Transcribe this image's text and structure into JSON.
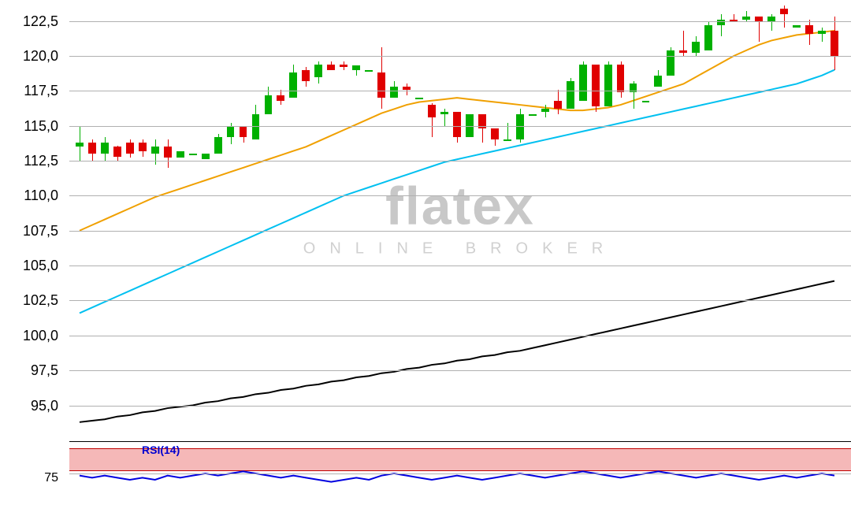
{
  "watermark": {
    "brand": "flatex",
    "sub": "ONLINE BROKER"
  },
  "price_chart": {
    "type": "candlestick",
    "ylim": [
      93.0,
      124.0
    ],
    "ytick_step": 2.5,
    "yticks": [
      "122,5",
      "120,0",
      "117,5",
      "115,0",
      "112,5",
      "110,0",
      "107,5",
      "105,0",
      "102,5",
      "100,0",
      "97,5",
      "95,0"
    ],
    "grid_color": "#b0b0b0",
    "background_color": "#ffffff",
    "label_fontsize": 18,
    "label_color": "#000000",
    "up_color": "#00b000",
    "down_color": "#e00000",
    "wick_width": 1,
    "candle_width": 8,
    "candle_gap": 4,
    "candles": [
      {
        "o": 113.5,
        "h": 115.0,
        "l": 112.5,
        "c": 113.8,
        "dir": "u"
      },
      {
        "o": 113.8,
        "h": 114.0,
        "l": 112.5,
        "c": 113.0,
        "dir": "d"
      },
      {
        "o": 113.0,
        "h": 114.2,
        "l": 112.5,
        "c": 113.8,
        "dir": "u"
      },
      {
        "o": 113.5,
        "h": 113.6,
        "l": 112.5,
        "c": 112.8,
        "dir": "d"
      },
      {
        "o": 113.8,
        "h": 114.0,
        "l": 112.7,
        "c": 113.0,
        "dir": "d"
      },
      {
        "o": 113.8,
        "h": 114.0,
        "l": 112.8,
        "c": 113.2,
        "dir": "d"
      },
      {
        "o": 113.0,
        "h": 114.0,
        "l": 112.2,
        "c": 113.5,
        "dir": "u"
      },
      {
        "o": 113.5,
        "h": 114.0,
        "l": 112.0,
        "c": 112.7,
        "dir": "d"
      },
      {
        "o": 112.7,
        "h": 113.2,
        "l": 112.7,
        "c": 113.2,
        "dir": "u"
      },
      {
        "o": 113.0,
        "h": 113.0,
        "l": 113.0,
        "c": 113.0,
        "dir": "u"
      },
      {
        "o": 112.6,
        "h": 113.0,
        "l": 112.6,
        "c": 113.0,
        "dir": "u"
      },
      {
        "o": 113.0,
        "h": 114.4,
        "l": 113.0,
        "c": 114.2,
        "dir": "u"
      },
      {
        "o": 114.2,
        "h": 115.2,
        "l": 113.7,
        "c": 115.0,
        "dir": "u"
      },
      {
        "o": 115.0,
        "h": 115.0,
        "l": 113.8,
        "c": 114.2,
        "dir": "d"
      },
      {
        "o": 114.0,
        "h": 116.5,
        "l": 114.0,
        "c": 115.8,
        "dir": "u"
      },
      {
        "o": 115.8,
        "h": 117.8,
        "l": 115.8,
        "c": 117.2,
        "dir": "u"
      },
      {
        "o": 117.2,
        "h": 117.6,
        "l": 116.5,
        "c": 116.8,
        "dir": "d"
      },
      {
        "o": 117.0,
        "h": 119.4,
        "l": 117.0,
        "c": 118.8,
        "dir": "u"
      },
      {
        "o": 119.0,
        "h": 119.2,
        "l": 117.8,
        "c": 118.2,
        "dir": "d"
      },
      {
        "o": 118.5,
        "h": 119.6,
        "l": 118.0,
        "c": 119.4,
        "dir": "u"
      },
      {
        "o": 119.4,
        "h": 119.6,
        "l": 119.0,
        "c": 119.0,
        "dir": "d"
      },
      {
        "o": 119.4,
        "h": 119.6,
        "l": 119.0,
        "c": 119.2,
        "dir": "d"
      },
      {
        "o": 119.0,
        "h": 119.3,
        "l": 118.6,
        "c": 119.3,
        "dir": "u"
      },
      {
        "o": 119.0,
        "h": 119.0,
        "l": 119.0,
        "c": 119.0,
        "dir": "u"
      },
      {
        "o": 118.8,
        "h": 120.6,
        "l": 116.2,
        "c": 117.0,
        "dir": "d"
      },
      {
        "o": 117.0,
        "h": 118.2,
        "l": 117.0,
        "c": 117.8,
        "dir": "u"
      },
      {
        "o": 117.8,
        "h": 118.0,
        "l": 117.2,
        "c": 117.6,
        "dir": "d"
      },
      {
        "o": 117.0,
        "h": 117.0,
        "l": 117.0,
        "c": 117.0,
        "dir": "u"
      },
      {
        "o": 116.5,
        "h": 116.6,
        "l": 114.2,
        "c": 115.6,
        "dir": "d"
      },
      {
        "o": 115.8,
        "h": 116.2,
        "l": 115.0,
        "c": 116.0,
        "dir": "u"
      },
      {
        "o": 116.0,
        "h": 116.0,
        "l": 113.8,
        "c": 114.2,
        "dir": "d"
      },
      {
        "o": 114.2,
        "h": 115.8,
        "l": 114.2,
        "c": 115.8,
        "dir": "u"
      },
      {
        "o": 115.8,
        "h": 115.8,
        "l": 113.8,
        "c": 114.8,
        "dir": "d"
      },
      {
        "o": 114.8,
        "h": 114.8,
        "l": 113.6,
        "c": 114.0,
        "dir": "d"
      },
      {
        "o": 114.0,
        "h": 115.2,
        "l": 114.0,
        "c": 114.0,
        "dir": "u"
      },
      {
        "o": 114.0,
        "h": 116.2,
        "l": 113.8,
        "c": 115.8,
        "dir": "u"
      },
      {
        "o": 115.8,
        "h": 115.8,
        "l": 115.8,
        "c": 115.8,
        "dir": "u"
      },
      {
        "o": 116.0,
        "h": 116.5,
        "l": 115.6,
        "c": 116.2,
        "dir": "u"
      },
      {
        "o": 116.8,
        "h": 117.6,
        "l": 115.8,
        "c": 116.2,
        "dir": "d"
      },
      {
        "o": 116.2,
        "h": 118.4,
        "l": 116.2,
        "c": 118.2,
        "dir": "u"
      },
      {
        "o": 116.8,
        "h": 119.6,
        "l": 116.8,
        "c": 119.4,
        "dir": "u"
      },
      {
        "o": 119.4,
        "h": 119.4,
        "l": 116.0,
        "c": 116.4,
        "dir": "d"
      },
      {
        "o": 116.4,
        "h": 119.6,
        "l": 116.4,
        "c": 119.4,
        "dir": "u"
      },
      {
        "o": 119.4,
        "h": 119.6,
        "l": 117.0,
        "c": 117.4,
        "dir": "d"
      },
      {
        "o": 117.4,
        "h": 118.2,
        "l": 116.2,
        "c": 118.0,
        "dir": "u"
      },
      {
        "o": 116.8,
        "h": 116.8,
        "l": 116.8,
        "c": 116.8,
        "dir": "u"
      },
      {
        "o": 117.8,
        "h": 119.0,
        "l": 117.8,
        "c": 118.6,
        "dir": "u"
      },
      {
        "o": 118.6,
        "h": 120.6,
        "l": 118.6,
        "c": 120.4,
        "dir": "u"
      },
      {
        "o": 120.4,
        "h": 121.8,
        "l": 120.0,
        "c": 120.2,
        "dir": "d"
      },
      {
        "o": 120.2,
        "h": 121.4,
        "l": 120.0,
        "c": 121.0,
        "dir": "u"
      },
      {
        "o": 120.4,
        "h": 122.4,
        "l": 120.4,
        "c": 122.2,
        "dir": "u"
      },
      {
        "o": 122.2,
        "h": 123.0,
        "l": 121.4,
        "c": 122.6,
        "dir": "u"
      },
      {
        "o": 122.6,
        "h": 123.0,
        "l": 122.6,
        "c": 122.6,
        "dir": "d"
      },
      {
        "o": 122.6,
        "h": 123.2,
        "l": 122.4,
        "c": 122.8,
        "dir": "u"
      },
      {
        "o": 122.8,
        "h": 122.8,
        "l": 121.0,
        "c": 122.4,
        "dir": "d"
      },
      {
        "o": 122.4,
        "h": 123.0,
        "l": 121.8,
        "c": 122.8,
        "dir": "u"
      },
      {
        "o": 123.4,
        "h": 123.6,
        "l": 122.0,
        "c": 123.0,
        "dir": "d"
      },
      {
        "o": 122.0,
        "h": 122.2,
        "l": 122.0,
        "c": 122.2,
        "dir": "u"
      },
      {
        "o": 122.2,
        "h": 122.6,
        "l": 120.8,
        "c": 121.6,
        "dir": "d"
      },
      {
        "o": 121.6,
        "h": 122.0,
        "l": 121.0,
        "c": 121.8,
        "dir": "u"
      },
      {
        "o": 121.8,
        "h": 122.8,
        "l": 119.0,
        "c": 120.0,
        "dir": "d"
      }
    ],
    "ma_lines": [
      {
        "name": "ma-long",
        "color": "#000000",
        "width": 2,
        "values": [
          93.8,
          93.9,
          94.0,
          94.2,
          94.3,
          94.5,
          94.6,
          94.8,
          94.9,
          95.0,
          95.2,
          95.3,
          95.5,
          95.6,
          95.8,
          95.9,
          96.1,
          96.2,
          96.4,
          96.5,
          96.7,
          96.8,
          97.0,
          97.1,
          97.3,
          97.4,
          97.6,
          97.7,
          97.9,
          98.0,
          98.2,
          98.3,
          98.5,
          98.6,
          98.8,
          98.9,
          99.1,
          99.3,
          99.5,
          99.7,
          99.9,
          100.1,
          100.3,
          100.5,
          100.7,
          100.9,
          101.1,
          101.3,
          101.5,
          101.7,
          101.9,
          102.1,
          102.3,
          102.5,
          102.7,
          102.9,
          103.1,
          103.3,
          103.5,
          103.7,
          103.9
        ]
      },
      {
        "name": "ma-mid",
        "color": "#00c0f0",
        "width": 2,
        "values": [
          101.6,
          102.0,
          102.4,
          102.8,
          103.2,
          103.6,
          104.0,
          104.4,
          104.8,
          105.2,
          105.6,
          106.0,
          106.4,
          106.8,
          107.2,
          107.6,
          108.0,
          108.4,
          108.8,
          109.2,
          109.6,
          110.0,
          110.3,
          110.6,
          110.9,
          111.2,
          111.5,
          111.8,
          112.1,
          112.4,
          112.6,
          112.8,
          113.0,
          113.2,
          113.4,
          113.6,
          113.8,
          114.0,
          114.2,
          114.4,
          114.6,
          114.8,
          115.0,
          115.2,
          115.4,
          115.6,
          115.8,
          116.0,
          116.2,
          116.4,
          116.6,
          116.8,
          117.0,
          117.2,
          117.4,
          117.6,
          117.8,
          118.0,
          118.3,
          118.6,
          119.0
        ]
      },
      {
        "name": "ma-short",
        "color": "#f0a000",
        "width": 2,
        "values": [
          107.5,
          107.9,
          108.3,
          108.7,
          109.1,
          109.5,
          109.9,
          110.2,
          110.5,
          110.8,
          111.1,
          111.4,
          111.7,
          112.0,
          112.3,
          112.6,
          112.9,
          113.2,
          113.5,
          113.9,
          114.3,
          114.7,
          115.1,
          115.5,
          115.9,
          116.2,
          116.5,
          116.7,
          116.8,
          116.9,
          117.0,
          116.9,
          116.8,
          116.7,
          116.6,
          116.5,
          116.4,
          116.3,
          116.2,
          116.1,
          116.1,
          116.2,
          116.3,
          116.5,
          116.8,
          117.1,
          117.4,
          117.7,
          118.0,
          118.5,
          119.0,
          119.5,
          120.0,
          120.4,
          120.8,
          121.1,
          121.3,
          121.5,
          121.6,
          121.7,
          121.8
        ]
      }
    ]
  },
  "rsi_panel": {
    "label": "RSI(14)",
    "label_color": "#0000d0",
    "label_fontsize": 14,
    "ylim": [
      60,
      90
    ],
    "ytick": 75,
    "ytick_label": "75",
    "overbought_zone": {
      "from": 77,
      "to": 87,
      "fill": "#f5b8b8",
      "border": "#c00000"
    },
    "line_color": "#0000e0",
    "line_width": 2,
    "values": [
      74,
      73,
      74,
      73,
      72,
      73,
      72,
      74,
      73,
      74,
      75,
      74,
      75,
      76,
      75,
      74,
      73,
      74,
      73,
      72,
      71,
      72,
      73,
      72,
      74,
      75,
      74,
      73,
      72,
      73,
      74,
      73,
      72,
      73,
      74,
      75,
      74,
      73,
      74,
      75,
      76,
      75,
      74,
      73,
      74,
      75,
      76,
      75,
      74,
      73,
      74,
      75,
      74,
      73,
      72,
      73,
      74,
      73,
      74,
      75,
      74
    ]
  }
}
